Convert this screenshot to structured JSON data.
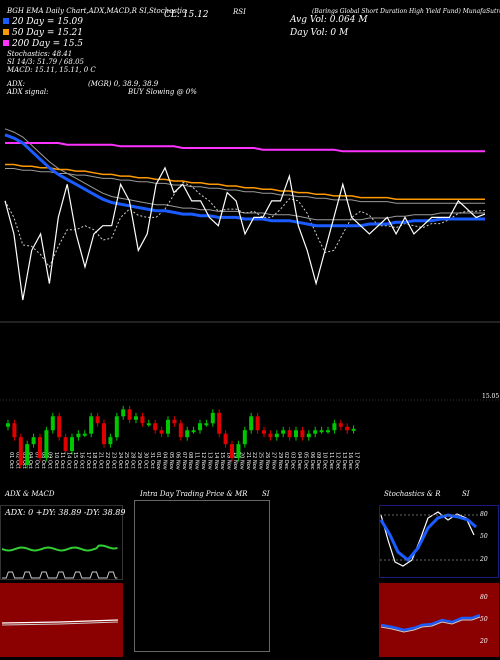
{
  "header": {
    "left_title": "BGH EMA Daily Chart,ADX,MACD,R SI,Stochastics MR",
    "cl_label": "CL: 15.12",
    "rsi_label": "RSI",
    "avg_vol": "Avg Vol: 0.064 M",
    "day_vol": "Day Vol: 0 M",
    "fund_name": "(Barings Global Short Duration High Yield Fund) MunafaSutra.com",
    "ema20": "20 Day = 15.09",
    "ema50": "50 Day = 15.21",
    "ema200": "200 Day = 15.5",
    "stoch": "Stochastics: 48.41",
    "si": "SI 14/3: 51.79 / 68.05",
    "macd": "MACD: 15.11, 15.11, 0 C",
    "adx": "ADX:",
    "adx_val": "(MGR) 0, 38.9, 38.9",
    "adx_signal": "ADX signal:",
    "buy_signal": "BUY Slowing @ 0%"
  },
  "price_right_label": "15.05",
  "dates": [
    "01 Oct",
    "02 Oct",
    "03 Oct",
    "04 Oct",
    "07 Oct",
    "08 Oct",
    "09 Oct",
    "10 Oct",
    "11 Oct",
    "14 Oct",
    "15 Oct",
    "16 Oct",
    "17 Oct",
    "18 Oct",
    "21 Oct",
    "22 Oct",
    "23 Oct",
    "24 Oct",
    "25 Oct",
    "28 Oct",
    "29 Oct",
    "30 Oct",
    "31 Oct",
    "01 Nov",
    "04 Nov",
    "05 Nov",
    "06 Nov",
    "07 Nov",
    "08 Nov",
    "11 Nov",
    "12 Nov",
    "13 Nov",
    "14 Nov",
    "15 Nov",
    "18 Nov",
    "19 Nov",
    "20 Nov",
    "21 Nov",
    "22 Nov",
    "25 Nov",
    "26 Nov",
    "27 Nov",
    "29 Nov",
    "02 Dec",
    "03 Dec",
    "04 Dec",
    "05 Dec",
    "06 Dec",
    "09 Dec",
    "10 Dec",
    "11 Dec",
    "12 Dec",
    "13 Dec",
    "16 Dec",
    "17 Dec"
  ],
  "bottom": {
    "p1_title": "ADX  & MACD",
    "p1_readout": "ADX: 0  +DY: 38.89  -DY: 38.89",
    "p2_title": "Intra  Day Trading Price  & MR",
    "p3_title": "SI",
    "p4_title": "Stochastics & R",
    "p4_si": "SI",
    "stoch_ticks": [
      "80",
      "50",
      "20"
    ],
    "rsi_ticks": [
      "80",
      "50",
      "20"
    ]
  },
  "colors": {
    "ema20": "#1a5cff",
    "ema50": "#ff9900",
    "ema200": "#ff33ff",
    "bull": "#00c800",
    "bear": "#e00000",
    "panel_red": "#8b0000"
  },
  "chart_data": {
    "type": "line",
    "title": "BGH EMA Daily Chart",
    "x": [
      "01 Oct",
      "02 Oct",
      "03 Oct",
      "04 Oct",
      "07 Oct",
      "08 Oct",
      "09 Oct",
      "10 Oct",
      "11 Oct",
      "14 Oct",
      "15 Oct",
      "16 Oct",
      "17 Oct",
      "18 Oct",
      "21 Oct",
      "22 Oct",
      "23 Oct",
      "24 Oct",
      "25 Oct",
      "28 Oct",
      "29 Oct",
      "30 Oct",
      "31 Oct",
      "01 Nov",
      "04 Nov",
      "05 Nov",
      "06 Nov",
      "07 Nov",
      "08 Nov",
      "11 Nov",
      "12 Nov",
      "13 Nov",
      "14 Nov",
      "15 Nov",
      "18 Nov",
      "19 Nov",
      "20 Nov",
      "21 Nov",
      "22 Nov",
      "25 Nov",
      "26 Nov",
      "27 Nov",
      "29 Nov",
      "02 Dec",
      "03 Dec",
      "04 Dec",
      "05 Dec",
      "06 Dec",
      "09 Dec",
      "10 Dec",
      "11 Dec",
      "12 Dec",
      "13 Dec",
      "16 Dec",
      "17 Dec"
    ],
    "series": [
      {
        "name": "Price",
        "values": [
          15.2,
          15.0,
          14.6,
          14.9,
          15.0,
          14.7,
          15.1,
          15.3,
          15.0,
          14.8,
          15.0,
          15.05,
          15.05,
          15.3,
          15.2,
          14.9,
          15.0,
          15.3,
          15.4,
          15.25,
          15.3,
          15.2,
          15.2,
          15.1,
          15.05,
          15.25,
          15.2,
          15.0,
          15.1,
          15.1,
          15.2,
          15.2,
          15.35,
          15.05,
          14.9,
          14.7,
          14.9,
          15.1,
          15.3,
          15.1,
          15.05,
          15.0,
          15.05,
          15.1,
          15.0,
          15.1,
          15.0,
          15.05,
          15.1,
          15.1,
          15.1,
          15.2,
          15.15,
          15.1,
          15.12
        ]
      },
      {
        "name": "20 Day",
        "values": [
          15.6,
          15.58,
          15.55,
          15.5,
          15.45,
          15.4,
          15.36,
          15.33,
          15.3,
          15.27,
          15.24,
          15.21,
          15.19,
          15.18,
          15.17,
          15.16,
          15.15,
          15.14,
          15.14,
          15.13,
          15.12,
          15.12,
          15.11,
          15.11,
          15.1,
          15.1,
          15.1,
          15.09,
          15.09,
          15.09,
          15.08,
          15.08,
          15.08,
          15.07,
          15.06,
          15.05,
          15.05,
          15.05,
          15.05,
          15.05,
          15.05,
          15.06,
          15.06,
          15.06,
          15.07,
          15.07,
          15.08,
          15.08,
          15.08,
          15.09,
          15.09,
          15.09,
          15.09,
          15.09,
          15.09
        ]
      },
      {
        "name": "50 Day",
        "values": [
          15.42,
          15.42,
          15.41,
          15.41,
          15.4,
          15.4,
          15.39,
          15.39,
          15.38,
          15.38,
          15.37,
          15.36,
          15.36,
          15.35,
          15.35,
          15.34,
          15.34,
          15.33,
          15.33,
          15.32,
          15.32,
          15.31,
          15.31,
          15.3,
          15.3,
          15.29,
          15.29,
          15.28,
          15.28,
          15.27,
          15.27,
          15.26,
          15.26,
          15.25,
          15.25,
          15.24,
          15.24,
          15.23,
          15.23,
          15.23,
          15.22,
          15.22,
          15.22,
          15.22,
          15.21,
          15.21,
          15.21,
          15.21,
          15.21,
          15.21,
          15.21,
          15.21,
          15.21,
          15.21,
          15.21
        ]
      },
      {
        "name": "200 Day",
        "values": [
          15.55,
          15.55,
          15.55,
          15.55,
          15.55,
          15.55,
          15.55,
          15.54,
          15.54,
          15.54,
          15.54,
          15.54,
          15.54,
          15.53,
          15.53,
          15.53,
          15.53,
          15.53,
          15.53,
          15.53,
          15.52,
          15.52,
          15.52,
          15.52,
          15.52,
          15.52,
          15.52,
          15.52,
          15.52,
          15.51,
          15.51,
          15.51,
          15.51,
          15.51,
          15.51,
          15.51,
          15.51,
          15.51,
          15.5,
          15.5,
          15.5,
          15.5,
          15.5,
          15.5,
          15.5,
          15.5,
          15.5,
          15.5,
          15.5,
          15.5,
          15.5,
          15.5,
          15.5,
          15.5,
          15.5
        ]
      }
    ],
    "ylim": [
      14.6,
      15.75
    ]
  }
}
